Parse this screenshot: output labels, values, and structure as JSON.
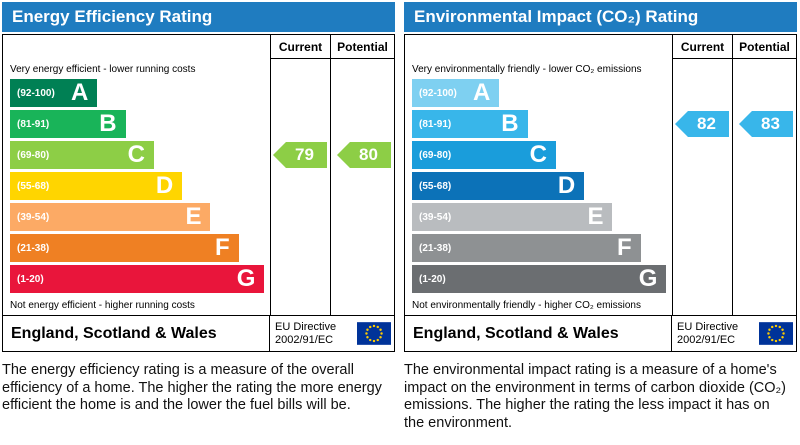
{
  "panels": [
    {
      "title": "Energy Efficiency Rating",
      "col_current": "Current",
      "col_potential": "Potential",
      "top_note": "Very energy efficient - lower running costs",
      "bottom_note": "Not energy efficient - higher running costs",
      "bands": [
        {
          "letter": "A",
          "range": "(92-100)",
          "color": "#008054",
          "width_pct": 34
        },
        {
          "letter": "B",
          "range": "(81-91)",
          "color": "#19b459",
          "width_pct": 45
        },
        {
          "letter": "C",
          "range": "(69-80)",
          "color": "#8dce46",
          "width_pct": 56
        },
        {
          "letter": "D",
          "range": "(55-68)",
          "color": "#ffd500",
          "width_pct": 67
        },
        {
          "letter": "E",
          "range": "(39-54)",
          "color": "#fcaa65",
          "width_pct": 78
        },
        {
          "letter": "F",
          "range": "(21-38)",
          "color": "#ef8023",
          "width_pct": 89
        },
        {
          "letter": "G",
          "range": "(1-20)",
          "color": "#e9153b",
          "width_pct": 99
        }
      ],
      "current": {
        "value": 79,
        "color": "#8dce46",
        "band_index": 2
      },
      "potential": {
        "value": 80,
        "color": "#8dce46",
        "band_index": 2
      },
      "footer_region": "England, Scotland & Wales",
      "directive_line1": "EU Directive",
      "directive_line2": "2002/91/EC",
      "description": "The energy efficiency rating is a measure of the overall efficiency of a home. The higher the rating the more energy efficient the home is and the lower the fuel bills will be."
    },
    {
      "title": "Environmental Impact (CO₂) Rating",
      "col_current": "Current",
      "col_potential": "Potential",
      "top_note": "Very environmentally friendly - lower CO₂ emissions",
      "bottom_note": "Not environmentally friendly - higher CO₂ emissions",
      "bands": [
        {
          "letter": "A",
          "range": "(92-100)",
          "color": "#7ed0f1",
          "width_pct": 34
        },
        {
          "letter": "B",
          "range": "(81-91)",
          "color": "#38b6ea",
          "width_pct": 45
        },
        {
          "letter": "C",
          "range": "(69-80)",
          "color": "#1a9ddb",
          "width_pct": 56
        },
        {
          "letter": "D",
          "range": "(55-68)",
          "color": "#0c72b8",
          "width_pct": 67
        },
        {
          "letter": "E",
          "range": "(39-54)",
          "color": "#b9bcbf",
          "width_pct": 78
        },
        {
          "letter": "F",
          "range": "(21-38)",
          "color": "#8e9193",
          "width_pct": 89
        },
        {
          "letter": "G",
          "range": "(1-20)",
          "color": "#6b6e71",
          "width_pct": 99
        }
      ],
      "current": {
        "value": 82,
        "color": "#38b6ea",
        "band_index": 1
      },
      "potential": {
        "value": 83,
        "color": "#38b6ea",
        "band_index": 1
      },
      "footer_region": "England, Scotland & Wales",
      "directive_line1": "EU Directive",
      "directive_line2": "2002/91/EC",
      "description": "The environmental impact rating is a measure of a home's impact on the environment in terms of carbon dioxide (CO₂) emissions. The higher the rating the less impact it has on the environment."
    }
  ],
  "chart_data": [
    {
      "type": "epc-band-rating",
      "title": "Energy Efficiency Rating",
      "bands": [
        {
          "letter": "A",
          "min": 92,
          "max": 100
        },
        {
          "letter": "B",
          "min": 81,
          "max": 91
        },
        {
          "letter": "C",
          "min": 69,
          "max": 80
        },
        {
          "letter": "D",
          "min": 55,
          "max": 68
        },
        {
          "letter": "E",
          "min": 39,
          "max": 54
        },
        {
          "letter": "F",
          "min": 21,
          "max": 38
        },
        {
          "letter": "G",
          "min": 1,
          "max": 20
        }
      ],
      "current": 79,
      "potential": 80,
      "region": "England, Scotland & Wales",
      "directive": "EU Directive 2002/91/EC"
    },
    {
      "type": "epc-band-rating",
      "title": "Environmental Impact (CO₂) Rating",
      "bands": [
        {
          "letter": "A",
          "min": 92,
          "max": 100
        },
        {
          "letter": "B",
          "min": 81,
          "max": 91
        },
        {
          "letter": "C",
          "min": 69,
          "max": 80
        },
        {
          "letter": "D",
          "min": 55,
          "max": 68
        },
        {
          "letter": "E",
          "min": 39,
          "max": 54
        },
        {
          "letter": "F",
          "min": 21,
          "max": 38
        },
        {
          "letter": "G",
          "min": 1,
          "max": 20
        }
      ],
      "current": 82,
      "potential": 83,
      "region": "England, Scotland & Wales",
      "directive": "EU Directive 2002/91/EC"
    }
  ]
}
